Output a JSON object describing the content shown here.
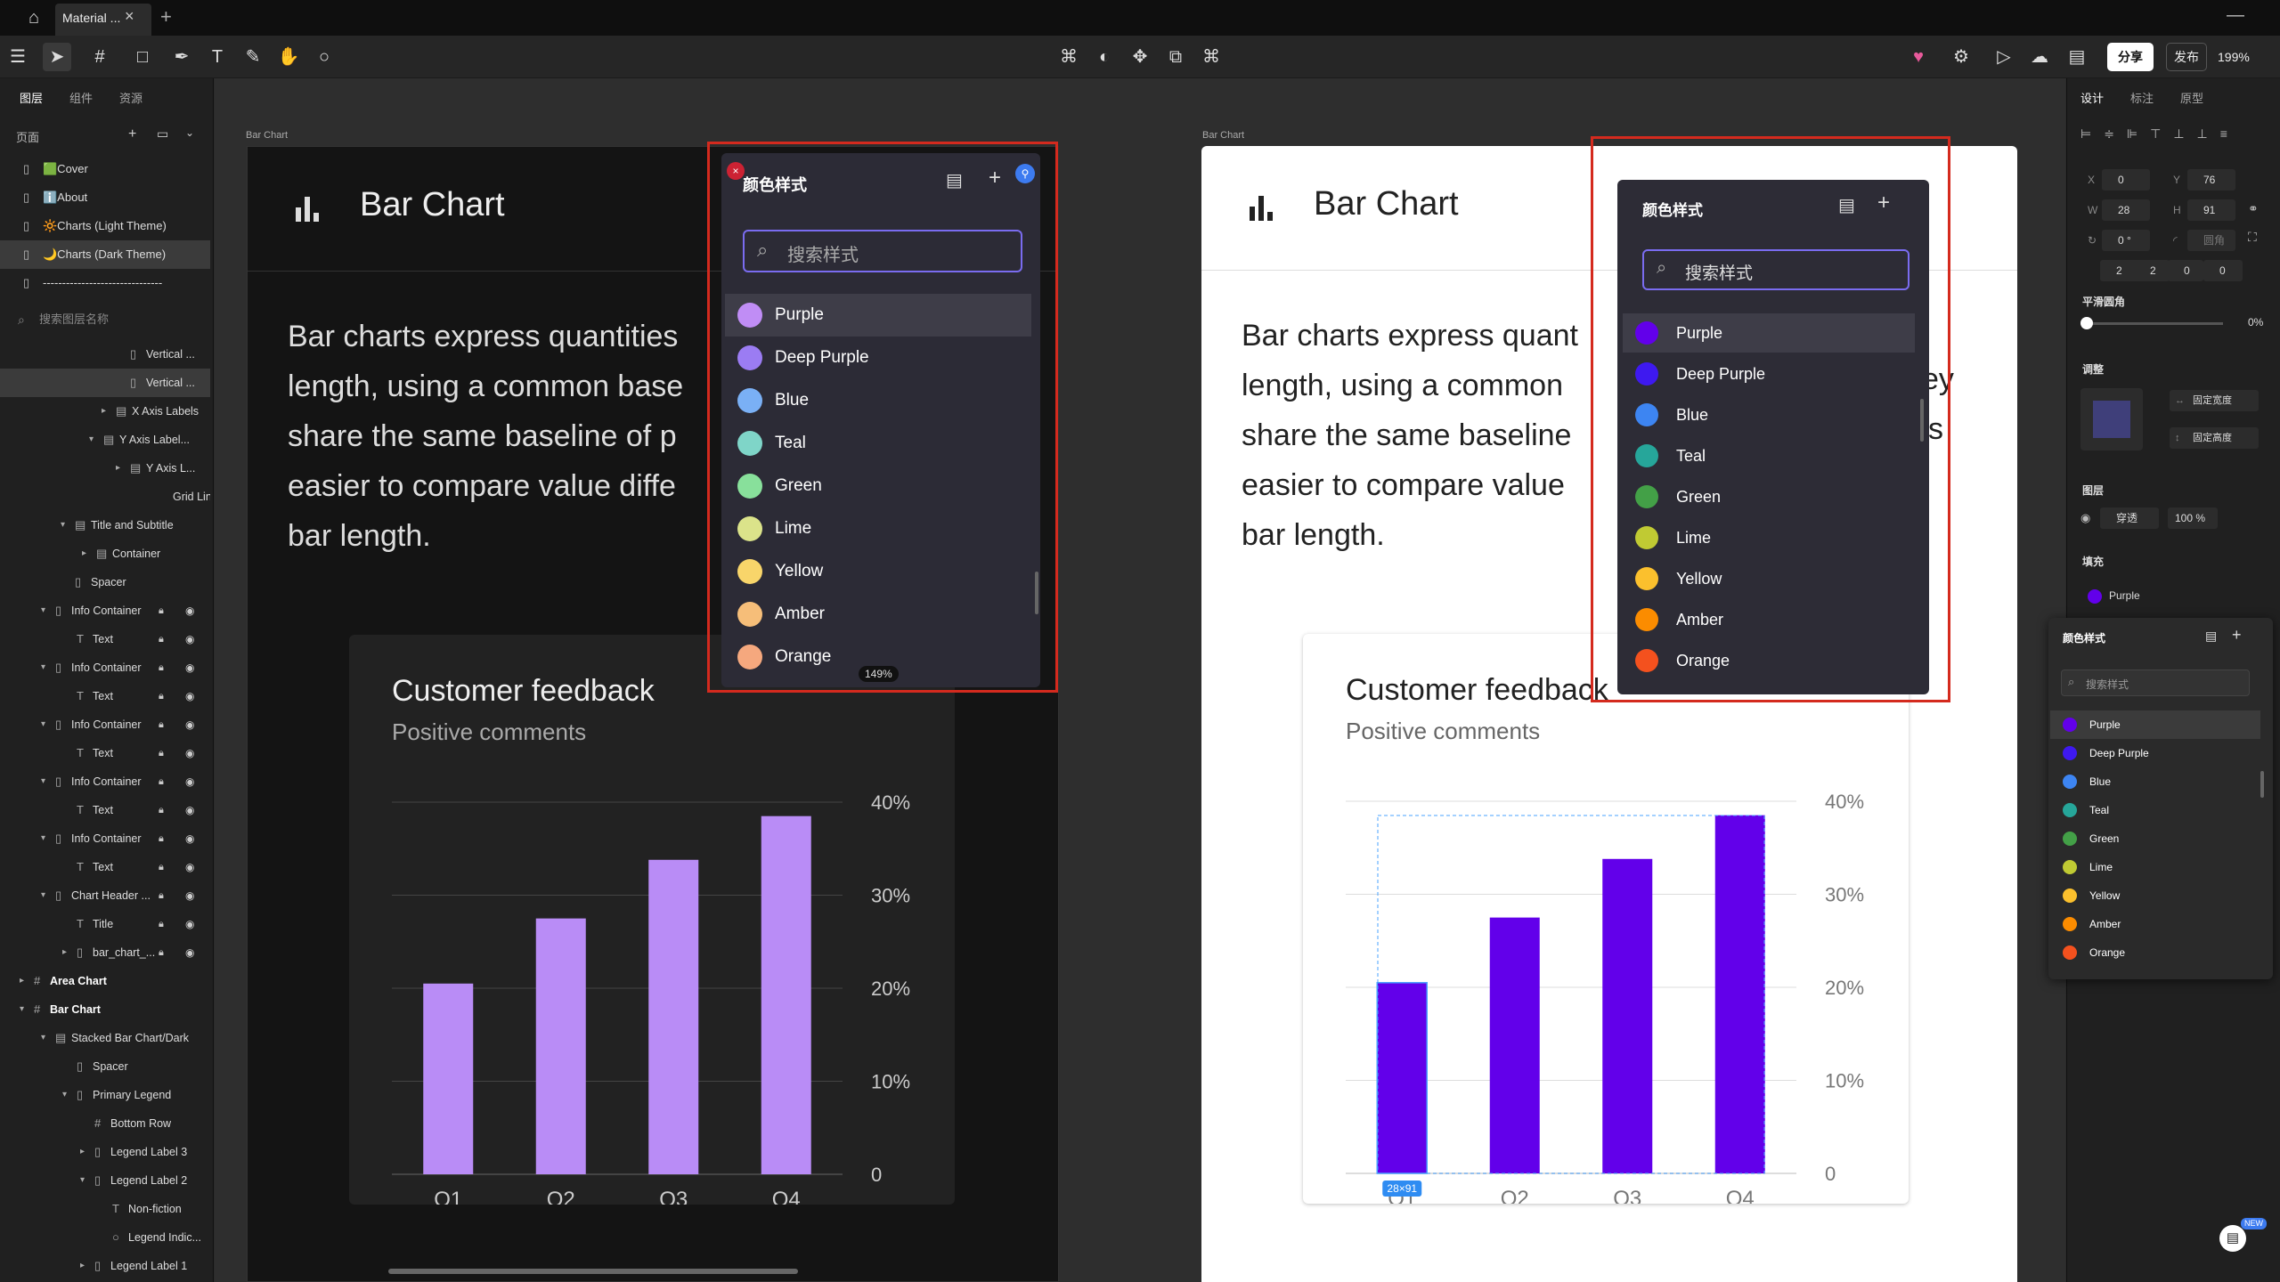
{
  "tab": {
    "label": "Material ...",
    "close": "×",
    "add": "+"
  },
  "toolbar": {
    "share": "分享",
    "publish": "发布",
    "zoom": "199%"
  },
  "left_panel": {
    "tabs": [
      "图层",
      "组件",
      "资源"
    ],
    "pages_title": "页面",
    "pages": [
      "🟩Cover",
      "ℹ️About",
      "🔆Charts (Light Theme)",
      "🌙Charts (Dark Theme)",
      "-------------------------------"
    ],
    "search_placeholder": "搜索图层名称",
    "layers": [
      "Vertical ...",
      "Vertical ...",
      "X Axis Labels",
      "Y Axis Label...",
      "Y Axis L...",
      "Grid Lines",
      "Title and Subtitle",
      "Container",
      "Spacer",
      "Info Container",
      "Text",
      "Info Container",
      "Text",
      "Info Container",
      "Text",
      "Info Container",
      "Text",
      "Info Container",
      "Text",
      "Chart Header ...",
      "Title",
      "bar_chart_...",
      "Area Chart",
      "Bar Chart",
      "Stacked Bar Chart/Dark",
      "Spacer",
      "Primary Legend",
      "Bottom Row",
      "Legend Label 3",
      "Legend Label 2",
      "Non-fiction",
      "Legend Indic...",
      "Legend Label 1"
    ]
  },
  "frames": {
    "label": "Bar Chart",
    "title": "Bar Chart",
    "description": "Bar charts express quantities through a bar's length, using a common baseline. When they share the same baseline of positions, it is easier to compare value differences by the bar length.",
    "dark_desc_lines": [
      "Bar charts express quantities",
      "length, using a common base",
      "share the same baseline of p",
      "easier to compare value diffe",
      "bar length."
    ],
    "light_desc_lines": [
      "Bar charts express quant",
      "length, using a common",
      "share the same baseline",
      "easier to compare value",
      "bar length."
    ],
    "light_desc_right": [
      "ey",
      "’s"
    ],
    "card_title": "Customer feedback",
    "card_subtitle": "Positive comments",
    "selection_size": "28×91"
  },
  "chart_data": {
    "type": "bar",
    "categories": [
      "Q1",
      "Q2",
      "Q3",
      "Q4"
    ],
    "values": [
      20.5,
      27.5,
      33.8,
      38.5
    ],
    "ylim": [
      0,
      40
    ],
    "yticks": [
      "0",
      "10%",
      "20%",
      "30%",
      "40%"
    ],
    "title": "Customer feedback",
    "subtitle": "Positive comments",
    "dark_color": "#b98cf6",
    "light_color": "#6200ea"
  },
  "color_styles": {
    "title": "颜色样式",
    "search_placeholder": "搜索样式",
    "zoom_badge": "149%",
    "items": [
      {
        "name": "Purple",
        "dark": "#c08df5",
        "light": "#6200ea"
      },
      {
        "name": "Deep Purple",
        "dark": "#9b7cf3",
        "light": "#3e19f0"
      },
      {
        "name": "Blue",
        "dark": "#7ab0f5",
        "light": "#3d85f2"
      },
      {
        "name": "Teal",
        "dark": "#7fd5c8",
        "light": "#26a69a"
      },
      {
        "name": "Green",
        "dark": "#88e09b",
        "light": "#43a047"
      },
      {
        "name": "Lime",
        "dark": "#dbe38a",
        "light": "#c0ca33"
      },
      {
        "name": "Yellow",
        "dark": "#f8d56a",
        "light": "#fbc02d"
      },
      {
        "name": "Amber",
        "dark": "#f6be79",
        "light": "#fb8c00"
      },
      {
        "name": "Orange",
        "dark": "#f5a87e",
        "light": "#f4511e"
      }
    ]
  },
  "right_panel": {
    "tabs": [
      "设计",
      "标注",
      "原型"
    ],
    "x_label": "X",
    "x": "0",
    "y_label": "Y",
    "y": "76",
    "w_label": "W",
    "w": "28",
    "h_label": "H",
    "h": "91",
    "rotation": "0 °",
    "radius_ph": "圆角",
    "corners": [
      "2",
      "2",
      "0",
      "0"
    ],
    "smooth_label": "平滑圆角",
    "smooth_value": "0%",
    "adjust_label": "调整",
    "fixed_width": "固定宽度",
    "fixed_height": "固定高度",
    "layer_label": "图层",
    "blend": "穿透",
    "opacity": "100 %",
    "fill_label": "填充",
    "fill_name": "Purple"
  }
}
